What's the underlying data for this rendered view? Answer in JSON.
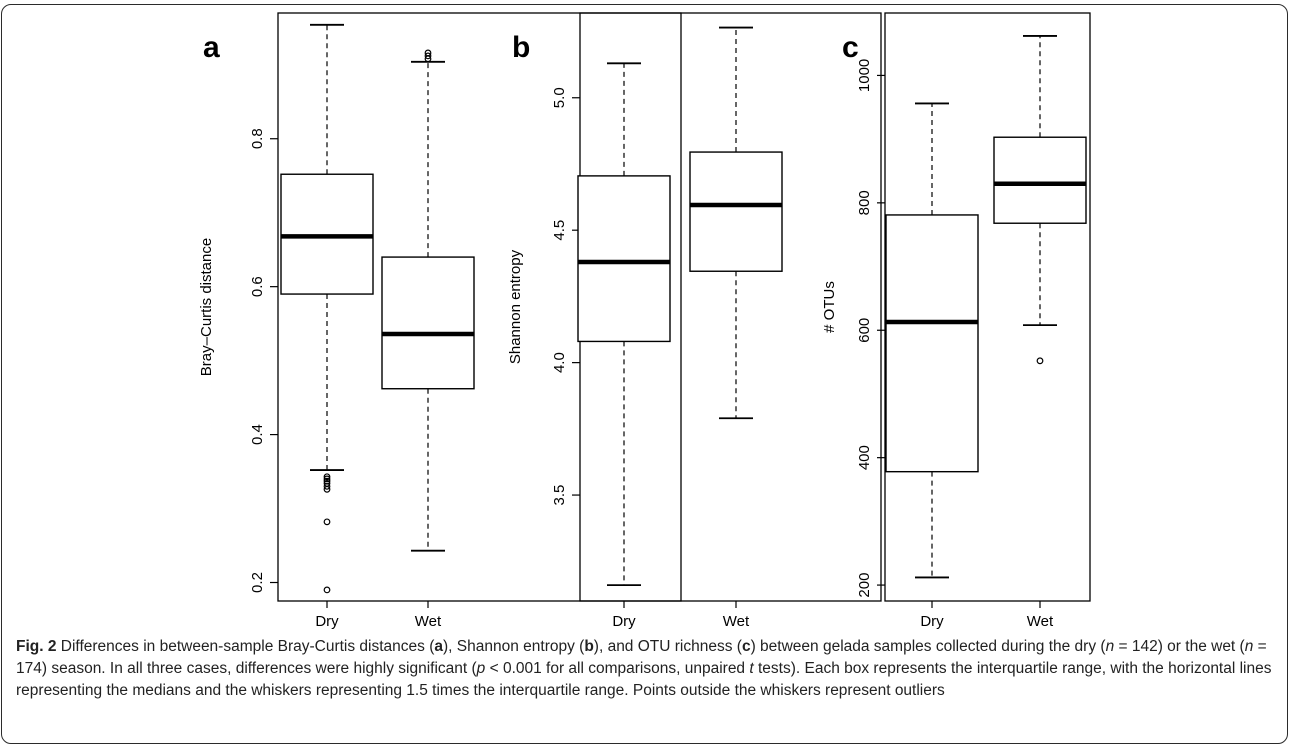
{
  "chart_data": [
    {
      "type": "box",
      "panel_label": "a",
      "categories": [
        "Dry",
        "Wet"
      ],
      "ylabel": "Bray–Curtis distance",
      "ylim": [
        0.175,
        0.97
      ],
      "yticks": [
        0.2,
        0.4,
        0.6,
        0.8
      ],
      "ytick_labels": [
        "0.2",
        "0.4",
        "0.6",
        "0.8"
      ],
      "boxes": [
        {
          "whisker_low": 0.352,
          "q1": 0.59,
          "median": 0.668,
          "q3": 0.752,
          "whisker_high": 0.954,
          "outliers": [
            0.343,
            0.34,
            0.337,
            0.334,
            0.33,
            0.326,
            0.282,
            0.19
          ]
        },
        {
          "whisker_low": 0.243,
          "q1": 0.462,
          "median": 0.536,
          "q3": 0.64,
          "whisker_high": 0.904,
          "outliers": [
            0.908,
            0.912,
            0.916
          ]
        }
      ]
    },
    {
      "type": "box",
      "panel_label": "b",
      "categories": [
        "Dry",
        "Wet"
      ],
      "ylabel": "Shannon entropy",
      "ylim": [
        3.1,
        5.32
      ],
      "yticks": [
        3.5,
        4.0,
        4.5,
        5.0
      ],
      "ytick_labels": [
        "3.5",
        "4.0",
        "4.5",
        "5.0"
      ],
      "boxes": [
        {
          "whisker_low": 3.16,
          "q1": 4.08,
          "median": 4.38,
          "q3": 4.705,
          "whisker_high": 5.13,
          "outliers": []
        },
        {
          "whisker_low": 3.79,
          "q1": 4.345,
          "median": 4.595,
          "q3": 4.795,
          "whisker_high": 5.265,
          "outliers": []
        }
      ]
    },
    {
      "type": "box",
      "panel_label": "c",
      "categories": [
        "Dry",
        "Wet"
      ],
      "ylabel": "# OTUs",
      "ylim": [
        175,
        1098
      ],
      "yticks": [
        200,
        400,
        600,
        800,
        1000
      ],
      "ytick_labels": [
        "200",
        "400",
        "600",
        "800",
        "1000"
      ],
      "boxes": [
        {
          "whisker_low": 212,
          "q1": 378,
          "median": 613,
          "q3": 781,
          "whisker_high": 956,
          "outliers": []
        },
        {
          "whisker_low": 608,
          "q1": 768,
          "median": 830,
          "q3": 903,
          "whisker_high": 1062,
          "outliers": [
            552
          ]
        }
      ]
    }
  ],
  "caption": {
    "fig_label": "Fig. 2",
    "p1": " Differences in between-sample Bray-Curtis distances (",
    "b1": "a",
    "p2": "), Shannon entropy (",
    "b2": "b",
    "p3": "), and OTU richness (",
    "b3": "c",
    "p4": ") between gelada samples collected during the dry (",
    "i1": "n",
    "p5": " = 142) or the wet (",
    "i2": "n",
    "p6": " = 174) season. In all three cases, differences were highly significant (",
    "i3": "p",
    "p7": " < 0.001 for all comparisons, unpaired ",
    "i4": "t",
    "p8": " tests). Each box represents the interquartile range, with the horizontal lines representing the medians and the whiskers representing 1.5 times the interquartile range. Points outside the whiskers represent outliers"
  }
}
